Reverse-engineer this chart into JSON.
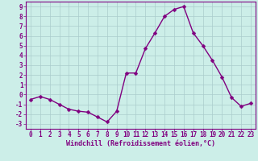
{
  "x": [
    0,
    1,
    2,
    3,
    4,
    5,
    6,
    7,
    8,
    9,
    10,
    11,
    12,
    13,
    14,
    15,
    16,
    17,
    18,
    19,
    20,
    21,
    22,
    23
  ],
  "y": [
    -0.5,
    -0.2,
    -0.5,
    -1.0,
    -1.5,
    -1.7,
    -1.8,
    -2.3,
    -2.8,
    -1.7,
    2.2,
    2.2,
    4.7,
    6.3,
    8.0,
    8.7,
    9.0,
    6.3,
    5.0,
    3.5,
    1.8,
    -0.3,
    -1.2,
    -0.9
  ],
  "line_color": "#800080",
  "marker_color": "#800080",
  "bg_color": "#cceee8",
  "grid_color": "#aacccc",
  "xlabel": "Windchill (Refroidissement éolien,°C)",
  "xlabel_color": "#800080",
  "tick_color": "#800080",
  "ylim": [
    -3.5,
    9.5
  ],
  "xlim": [
    -0.5,
    23.5
  ],
  "yticks": [
    -3,
    -2,
    -1,
    0,
    1,
    2,
    3,
    4,
    5,
    6,
    7,
    8,
    9
  ],
  "xticks": [
    0,
    1,
    2,
    3,
    4,
    5,
    6,
    7,
    8,
    9,
    10,
    11,
    12,
    13,
    14,
    15,
    16,
    17,
    18,
    19,
    20,
    21,
    22,
    23
  ],
  "line_width": 1.0,
  "marker_size": 2.5,
  "spine_color": "#800080",
  "tick_fontsize": 5.5,
  "xlabel_fontsize": 6.0
}
